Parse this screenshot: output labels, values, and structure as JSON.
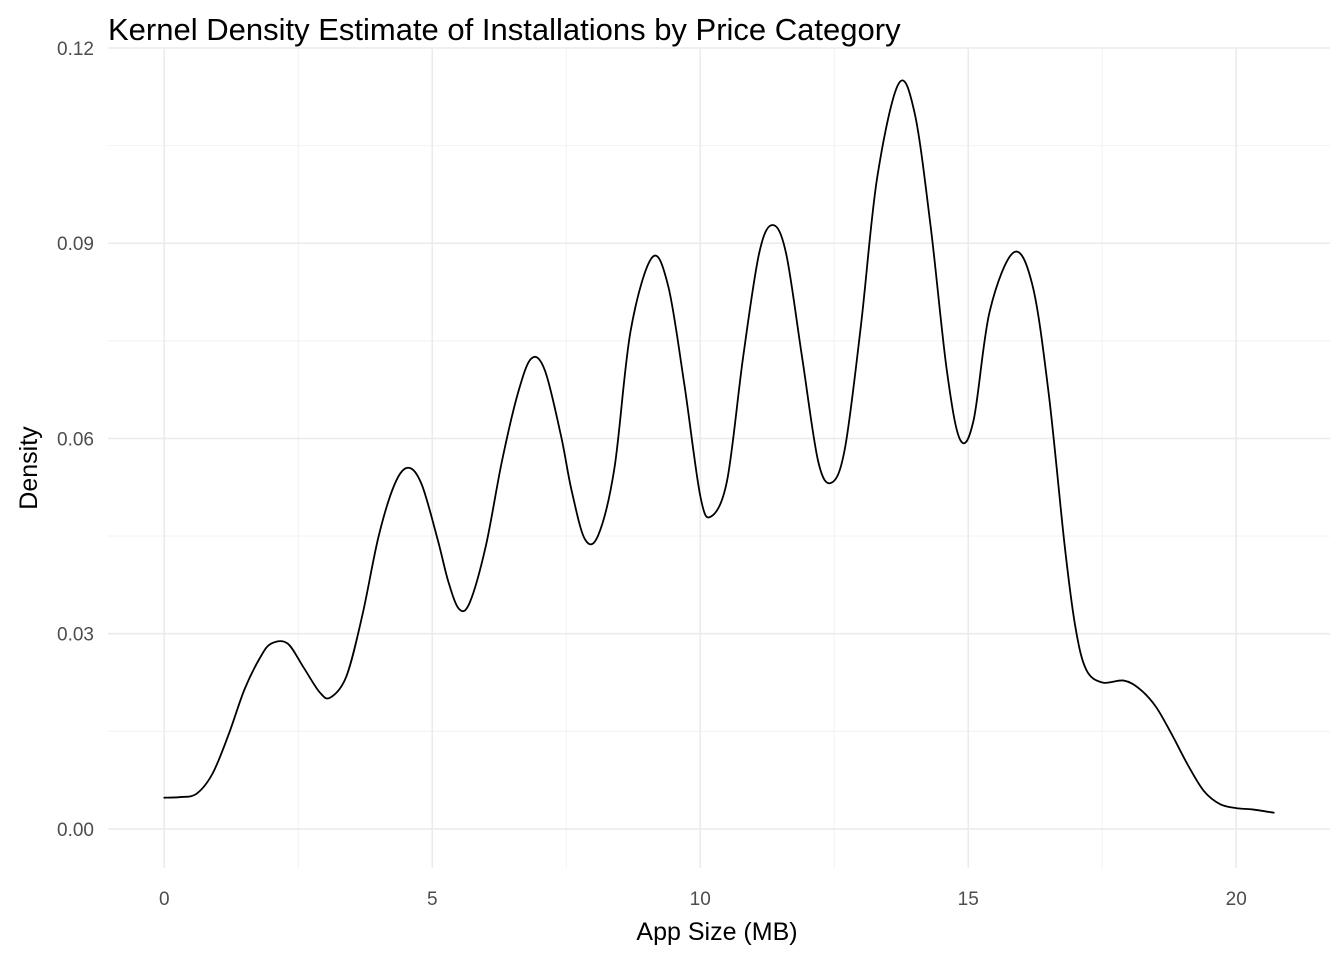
{
  "chart_data": {
    "type": "line",
    "title": "Kernel Density Estimate of Installations by Price Category",
    "xlabel": "App Size (MB)",
    "ylabel": "Density",
    "xlim": [
      -1.05,
      21.75
    ],
    "ylim": [
      -0.006,
      0.12
    ],
    "x_ticks": [
      0,
      5,
      10,
      15,
      20
    ],
    "x_tick_labels": [
      "0",
      "5",
      "10",
      "15",
      "20"
    ],
    "y_ticks": [
      0,
      0.03,
      0.06,
      0.09,
      0.12
    ],
    "y_tick_labels": [
      "0.00",
      "0.03",
      "0.06",
      "0.09",
      "0.12"
    ],
    "grid": true,
    "legend": "none",
    "line_color": "#000000",
    "series": [
      {
        "x": [
          0,
          0.3,
          0.6,
          0.9,
          1.2,
          1.5,
          1.8,
          2.0,
          2.3,
          2.6,
          2.9,
          3.1,
          3.4,
          3.7,
          4.0,
          4.3,
          4.55,
          4.8,
          5.1,
          5.3,
          5.5,
          5.7,
          6.0,
          6.3,
          6.6,
          6.85,
          7.1,
          7.4,
          7.6,
          7.85,
          8.1,
          8.4,
          8.7,
          9.1,
          9.4,
          9.7,
          10.0,
          10.2,
          10.5,
          10.8,
          11.1,
          11.35,
          11.6,
          11.9,
          12.2,
          12.45,
          12.7,
          13.0,
          13.3,
          13.7,
          14.0,
          14.3,
          14.6,
          14.85,
          15.1,
          15.4,
          15.85,
          16.2,
          16.5,
          16.8,
          17.0,
          17.2,
          17.5,
          17.9,
          18.2,
          18.5,
          18.8,
          19.1,
          19.4,
          19.7,
          20.0,
          20.3,
          20.7
        ],
        "y": [
          0.0048,
          0.0049,
          0.0054,
          0.0085,
          0.0145,
          0.0215,
          0.0265,
          0.0285,
          0.0285,
          0.0248,
          0.021,
          0.0202,
          0.0235,
          0.033,
          0.045,
          0.053,
          0.0555,
          0.053,
          0.0445,
          0.038,
          0.0338,
          0.0348,
          0.0435,
          0.0565,
          0.067,
          0.0723,
          0.0705,
          0.0605,
          0.052,
          0.0445,
          0.0452,
          0.0555,
          0.0765,
          0.0878,
          0.0835,
          0.0685,
          0.0512,
          0.048,
          0.0535,
          0.0725,
          0.0885,
          0.0928,
          0.0885,
          0.0725,
          0.0565,
          0.0532,
          0.0585,
          0.0775,
          0.1,
          0.1145,
          0.11,
          0.0925,
          0.0705,
          0.0598,
          0.0628,
          0.0795,
          0.0886,
          0.0835,
          0.067,
          0.0435,
          0.031,
          0.0245,
          0.0225,
          0.0228,
          0.0215,
          0.0188,
          0.0145,
          0.0098,
          0.0058,
          0.0038,
          0.0032,
          0.003,
          0.0025
        ]
      }
    ]
  }
}
